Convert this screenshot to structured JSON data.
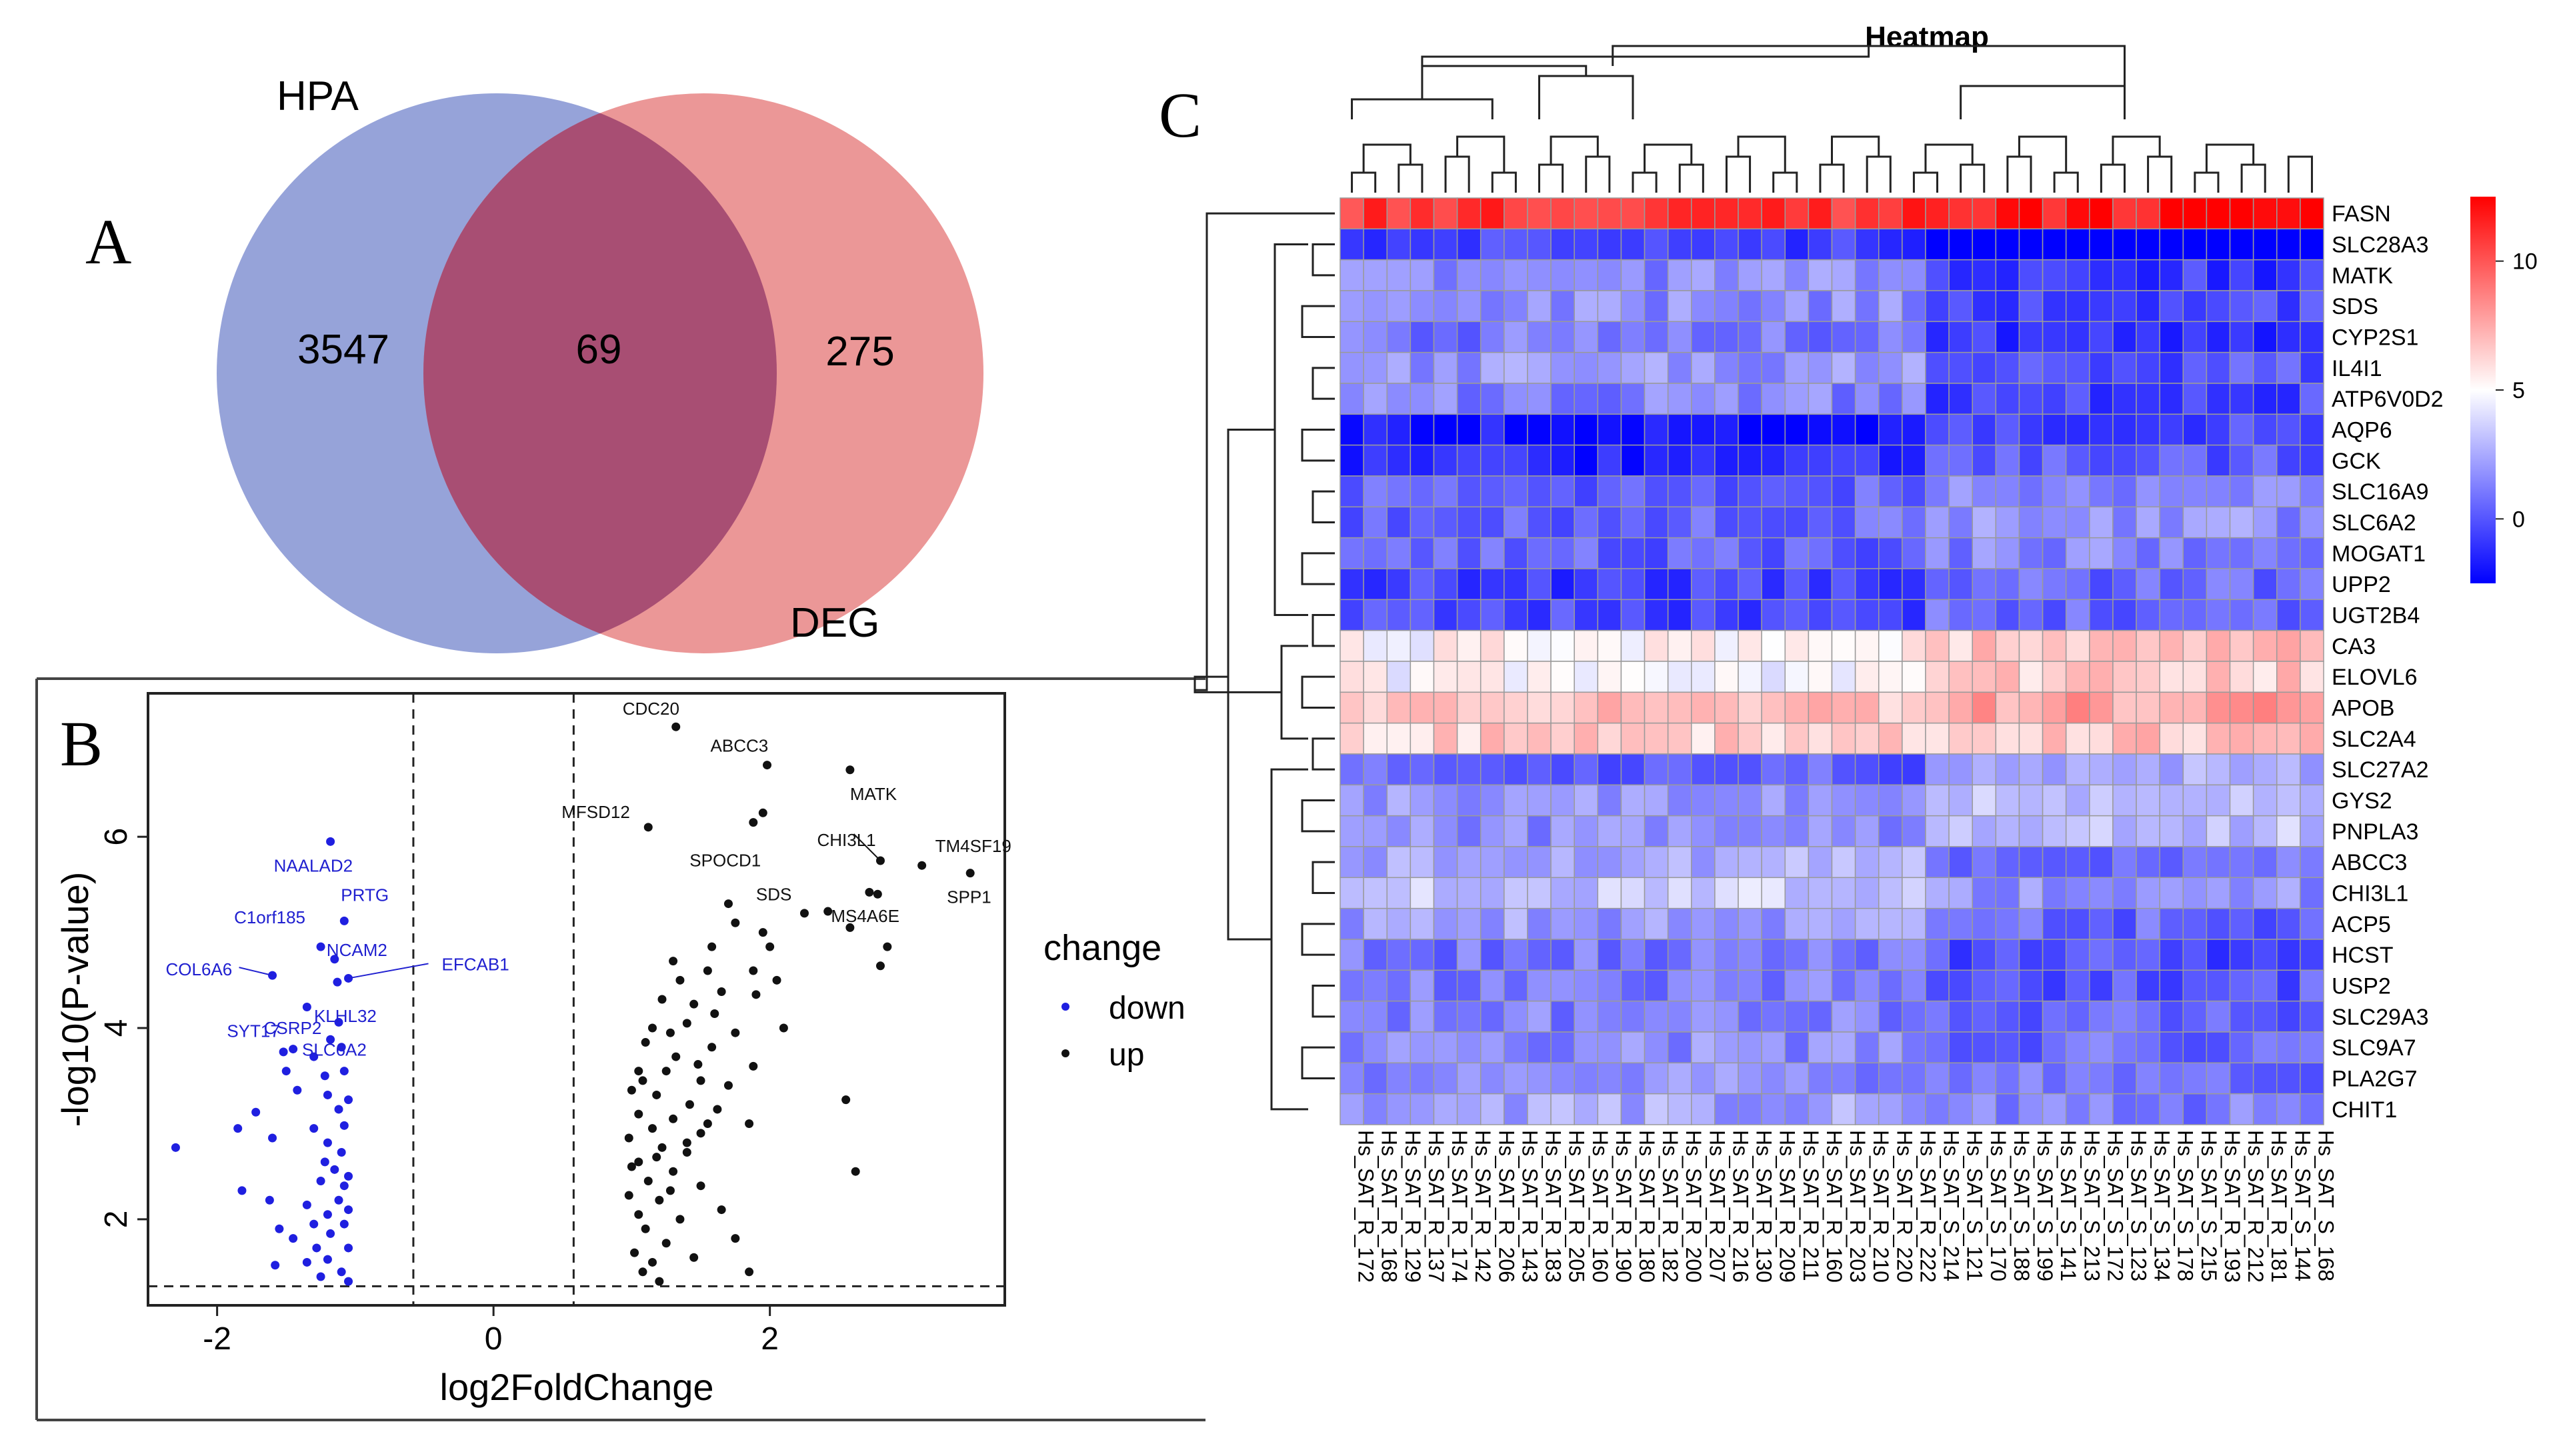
{
  "panels": {
    "a": "A",
    "b": "B",
    "c": "C"
  },
  "venn": {
    "left_label": "HPA",
    "right_label": "DEG",
    "left_only": "3547",
    "overlap": "69",
    "right_only": "275",
    "left_color": "#7f8fd1",
    "right_color": "#e57a7a"
  },
  "chart_data": [
    {
      "type": "scatter",
      "title": "",
      "xlabel": "log2FoldChange",
      "ylabel": "-log10(P-value)",
      "xlim": [
        -2.5,
        3.7
      ],
      "ylim": [
        1.1,
        7.5
      ],
      "xticks": [
        "-2",
        "0",
        "2"
      ],
      "yticks": [
        "2",
        "4",
        "6"
      ],
      "legend": {
        "title": "change",
        "placement": "right",
        "entries": [
          {
            "name": "down",
            "color": "#1f1fe0"
          },
          {
            "name": "up",
            "color": "#111111"
          }
        ]
      },
      "thresholds": {
        "x": [
          -0.58,
          0.58
        ],
        "y": 1.3
      },
      "series": [
        {
          "name": "down",
          "points": [
            [
              -1.18,
              5.95
            ],
            [
              -1.08,
              5.12
            ],
            [
              -1.25,
              4.85
            ],
            [
              -1.15,
              4.72
            ],
            [
              -1.6,
              4.55
            ],
            [
              -1.05,
              4.52
            ],
            [
              -1.35,
              4.22
            ],
            [
              -1.13,
              4.48
            ],
            [
              -1.12,
              4.06
            ],
            [
              -1.18,
              3.88
            ],
            [
              -1.1,
              3.8
            ],
            [
              -1.45,
              3.78
            ],
            [
              -1.08,
              3.55
            ],
            [
              -1.3,
              3.7
            ],
            [
              -1.52,
              3.75
            ],
            [
              -1.5,
              3.55
            ],
            [
              -1.42,
              3.35
            ],
            [
              -1.22,
              3.5
            ],
            [
              -1.2,
              3.3
            ],
            [
              -1.05,
              3.25
            ],
            [
              -1.12,
              3.15
            ],
            [
              -1.72,
              3.12
            ],
            [
              -1.85,
              2.95
            ],
            [
              -1.6,
              2.85
            ],
            [
              -1.3,
              2.95
            ],
            [
              -1.2,
              2.8
            ],
            [
              -1.08,
              2.98
            ],
            [
              -2.3,
              2.75
            ],
            [
              -1.1,
              2.7
            ],
            [
              -1.22,
              2.6
            ],
            [
              -1.15,
              2.52
            ],
            [
              -1.05,
              2.45
            ],
            [
              -1.08,
              2.35
            ],
            [
              -1.25,
              2.4
            ],
            [
              -1.12,
              2.2
            ],
            [
              -1.82,
              2.3
            ],
            [
              -1.62,
              2.2
            ],
            [
              -1.35,
              2.15
            ],
            [
              -1.2,
              2.05
            ],
            [
              -1.05,
              2.1
            ],
            [
              -1.3,
              1.95
            ],
            [
              -1.55,
              1.9
            ],
            [
              -1.45,
              1.8
            ],
            [
              -1.18,
              1.85
            ],
            [
              -1.08,
              1.95
            ],
            [
              -1.28,
              1.7
            ],
            [
              -1.05,
              1.7
            ],
            [
              -1.35,
              1.55
            ],
            [
              -1.58,
              1.52
            ],
            [
              -1.2,
              1.58
            ],
            [
              -1.1,
              1.45
            ],
            [
              -1.05,
              1.35
            ],
            [
              -1.25,
              1.4
            ]
          ]
        },
        {
          "name": "up",
          "points": [
            [
              1.32,
              7.15
            ],
            [
              1.98,
              6.75
            ],
            [
              2.58,
              6.7
            ],
            [
              1.95,
              6.25
            ],
            [
              1.12,
              6.1
            ],
            [
              1.88,
              6.15
            ],
            [
              2.8,
              5.75
            ],
            [
              2.72,
              5.42
            ],
            [
              3.1,
              5.7
            ],
            [
              3.45,
              5.62
            ],
            [
              2.78,
              5.4
            ],
            [
              2.58,
              5.05
            ],
            [
              1.7,
              5.3
            ],
            [
              2.25,
              5.2
            ],
            [
              2.85,
              4.85
            ],
            [
              2.42,
              5.22
            ],
            [
              2.8,
              4.65
            ],
            [
              1.75,
              5.1
            ],
            [
              1.95,
              5.0
            ],
            [
              2.0,
              4.85
            ],
            [
              1.58,
              4.85
            ],
            [
              1.88,
              4.6
            ],
            [
              2.05,
              4.5
            ],
            [
              1.55,
              4.6
            ],
            [
              1.3,
              4.7
            ],
            [
              1.65,
              4.38
            ],
            [
              1.9,
              4.35
            ],
            [
              1.45,
              4.25
            ],
            [
              2.1,
              4.0
            ],
            [
              1.22,
              4.3
            ],
            [
              1.4,
              4.05
            ],
            [
              1.75,
              3.95
            ],
            [
              1.15,
              4.0
            ],
            [
              1.58,
              3.8
            ],
            [
              1.32,
              3.7
            ],
            [
              1.88,
              3.6
            ],
            [
              2.55,
              3.25
            ],
            [
              1.05,
              3.55
            ],
            [
              1.25,
              3.55
            ],
            [
              1.5,
              3.45
            ],
            [
              1.7,
              3.4
            ],
            [
              1.0,
              3.35
            ],
            [
              1.18,
              3.3
            ],
            [
              1.42,
              3.2
            ],
            [
              1.62,
              3.15
            ],
            [
              1.05,
              3.1
            ],
            [
              1.3,
              3.05
            ],
            [
              1.85,
              3.0
            ],
            [
              1.15,
              2.95
            ],
            [
              1.5,
              2.9
            ],
            [
              0.98,
              2.85
            ],
            [
              1.22,
              2.75
            ],
            [
              1.4,
              2.7
            ],
            [
              2.62,
              2.5
            ],
            [
              1.05,
              2.6
            ],
            [
              1.3,
              2.5
            ],
            [
              1.12,
              2.4
            ],
            [
              1.5,
              2.35
            ],
            [
              0.98,
              2.25
            ],
            [
              1.2,
              2.2
            ],
            [
              1.65,
              2.1
            ],
            [
              1.05,
              2.05
            ],
            [
              1.35,
              2.0
            ],
            [
              1.1,
              1.9
            ],
            [
              1.75,
              1.8
            ],
            [
              1.25,
              1.75
            ],
            [
              1.02,
              1.65
            ],
            [
              1.45,
              1.6
            ],
            [
              1.15,
              1.55
            ],
            [
              1.08,
              1.45
            ],
            [
              1.85,
              1.45
            ],
            [
              1.2,
              1.35
            ],
            [
              1.35,
              4.5
            ],
            [
              1.6,
              4.15
            ],
            [
              1.1,
              3.85
            ],
            [
              1.28,
              3.95
            ],
            [
              1.48,
              3.62
            ],
            [
              1.08,
              3.45
            ],
            [
              1.55,
              3.0
            ],
            [
              1.4,
              2.8
            ],
            [
              1.0,
              2.55
            ],
            [
              1.28,
              2.3
            ],
            [
              1.18,
              2.65
            ]
          ]
        }
      ],
      "annotations": [
        {
          "text": "CDC20",
          "series": "up",
          "x": 1.32,
          "y": 7.15,
          "color": "#111111"
        },
        {
          "text": "ABCC3",
          "series": "up",
          "x": 1.98,
          "y": 6.75,
          "color": "#111111"
        },
        {
          "text": "MATK",
          "series": "up",
          "x": 2.58,
          "y": 6.7,
          "color": "#111111"
        },
        {
          "text": "MFSD12",
          "series": "up",
          "x": 1.12,
          "y": 6.1,
          "color": "#111111"
        },
        {
          "text": "SPOCD1",
          "series": "up",
          "x": 1.95,
          "y": 6.25,
          "color": "#111111"
        },
        {
          "text": "CHI3L1",
          "series": "up",
          "x": 2.8,
          "y": 5.75,
          "color": "#111111"
        },
        {
          "text": "TM4SF19",
          "series": "up",
          "x": 3.1,
          "y": 5.7,
          "color": "#111111"
        },
        {
          "text": "SDS",
          "series": "up",
          "x": 2.72,
          "y": 5.42,
          "color": "#111111"
        },
        {
          "text": "SPP1",
          "series": "up",
          "x": 3.45,
          "y": 5.62,
          "color": "#111111"
        },
        {
          "text": "MS4A6E",
          "series": "up",
          "x": 2.78,
          "y": 5.4,
          "color": "#111111"
        },
        {
          "text": "NAALAD2",
          "series": "down",
          "x": -1.18,
          "y": 5.95,
          "color": "#2020d0"
        },
        {
          "text": "PRTG",
          "series": "down",
          "x": -1.08,
          "y": 5.12,
          "color": "#2020d0"
        },
        {
          "text": "C1orf185",
          "series": "down",
          "x": -1.25,
          "y": 4.85,
          "color": "#2020d0"
        },
        {
          "text": "COL6A6",
          "series": "down",
          "x": -1.6,
          "y": 4.55,
          "color": "#2020d0"
        },
        {
          "text": "NCAM2",
          "series": "down",
          "x": -1.15,
          "y": 4.72,
          "color": "#2020d0"
        },
        {
          "text": "EFCAB1",
          "series": "down",
          "x": -1.05,
          "y": 4.52,
          "color": "#2020d0"
        },
        {
          "text": "SYT17",
          "series": "down",
          "x": -1.35,
          "y": 4.22,
          "color": "#2020d0"
        },
        {
          "text": "KLHL32",
          "series": "down",
          "x": -1.13,
          "y": 4.48,
          "color": "#2020d0"
        },
        {
          "text": "CSRP2",
          "series": "down",
          "x": -1.18,
          "y": 3.88,
          "color": "#2020d0"
        },
        {
          "text": "SLC6A2",
          "series": "down",
          "x": -1.12,
          "y": 4.06,
          "color": "#2020d0"
        }
      ]
    },
    {
      "type": "heatmap",
      "title": "Heatmap",
      "rows": [
        "FASN",
        "SLC28A3",
        "MATK",
        "SDS",
        "CYP2S1",
        "IL4I1",
        "ATP6V0D2",
        "AQP6",
        "GCK",
        "SLC16A9",
        "SLC6A2",
        "MOGAT1",
        "UPP2",
        "UGT2B4",
        "CA3",
        "ELOVL6",
        "APOB",
        "SLC2A4",
        "SLC27A2",
        "GYS2",
        "PNPLA3",
        "ABCC3",
        "CHI3L1",
        "ACP5",
        "HCST",
        "USP2",
        "SLC29A3",
        "SLC9A7",
        "PLA2G7",
        "CHIT1"
      ],
      "columns": [
        "Hs_SAT_R_172",
        "Hs_SAT_R_168",
        "Hs_SAT_R_129",
        "Hs_SAT_R_137",
        "Hs_SAT_R_174",
        "Hs_SAT_R_142",
        "Hs_SAT_R_206",
        "Hs_SAT_R_143",
        "Hs_SAT_R_183",
        "Hs_SAT_R_205",
        "Hs_SAT_R_160",
        "Hs_SAT_R_190",
        "Hs_SAT_R_180",
        "Hs_SAT_R_182",
        "Hs_SAT_R_200",
        "Hs_SAT_R_207",
        "Hs_SAT_R_216",
        "Hs_SAT_R_130",
        "Hs_SAT_R_209",
        "Hs_SAT_R_211",
        "Hs_SAT_R_160",
        "Hs_SAT_R_203",
        "Hs_SAT_R_210",
        "Hs_SAT_R_220",
        "Hs_SAT_R_222",
        "Hs_SAT_S_214",
        "Hs_SAT_S_121",
        "Hs_SAT_S_170",
        "Hs_SAT_S_188",
        "Hs_SAT_S_199",
        "Hs_SAT_S_141",
        "Hs_SAT_S_213",
        "Hs_SAT_S_172",
        "Hs_SAT_S_123",
        "Hs_SAT_S_134",
        "Hs_SAT_S_178",
        "Hs_SAT_S_215",
        "Hs_SAT_R_193",
        "Hs_SAT_R_212",
        "Hs_SAT_R_181",
        "Hs_SAT_S_144",
        "Hs_SAT_S_168"
      ],
      "row_base": [
        11.0,
        -0.5,
        1.6,
        1.6,
        1.0,
        1.8,
        1.3,
        -2.0,
        -1.4,
        0.3,
        0.5,
        0.4,
        -0.7,
        -0.4,
        5.2,
        5.0,
        6.8,
        6.4,
        0.3,
        1.8,
        1.6,
        2.4,
        3.4,
        2.1,
        0.9,
        1.1,
        1.3,
        1.6,
        1.6,
        2.3
      ],
      "group_shift": [
        0.9,
        -2.8,
        -2.4,
        -2.2,
        -2.0,
        -1.9,
        -1.7,
        1.7,
        1.6,
        1.3,
        1.2,
        1.0,
        1.2,
        1.0,
        1.4,
        1.6,
        0.9,
        0.4,
        2.0,
        1.7,
        1.5,
        -1.6,
        -1.6,
        -1.6,
        -1.2,
        -1.0,
        -1.0,
        -1.0,
        -0.9,
        -1.1
      ],
      "group_split": 25,
      "color_range": [
        -2.5,
        12.5
      ],
      "colorbar_ticks": [
        "0",
        "5",
        "10"
      ],
      "colors": {
        "low": "#0000ff",
        "mid": "#ffffff",
        "high": "#ff0000"
      }
    }
  ]
}
